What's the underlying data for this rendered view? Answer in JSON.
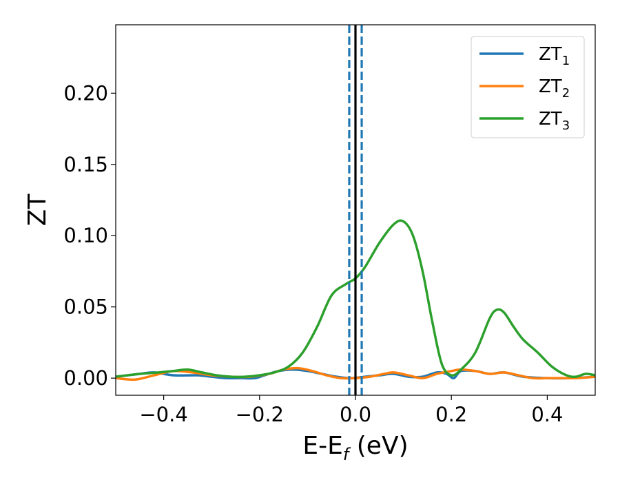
{
  "chart_data": {
    "type": "line",
    "xlabel": "E-E",
    "xlabel_sub": "f",
    "xlabel_unit": " (eV)",
    "ylabel": "ZT",
    "xlim": [
      -0.5,
      0.5
    ],
    "ylim": [
      -0.012,
      0.248
    ],
    "xticks": [
      -0.4,
      -0.2,
      0.0,
      0.2,
      0.4
    ],
    "xtick_labels": [
      "−0.4",
      "−0.2",
      "0.0",
      "0.2",
      "0.4"
    ],
    "yticks": [
      0.0,
      0.05,
      0.1,
      0.15,
      0.2
    ],
    "ytick_labels": [
      "0.00",
      "0.05",
      "0.10",
      "0.15",
      "0.20"
    ],
    "legend_position": "top-right",
    "grid": false,
    "vertical_lines": [
      {
        "x": 0.0,
        "color": "#000000",
        "style": "solid"
      },
      {
        "x": -0.013,
        "color": "#1f77b4",
        "style": "dashed"
      },
      {
        "x": 0.013,
        "color": "#1f77b4",
        "style": "dashed"
      }
    ],
    "series": [
      {
        "name": "ZT",
        "name_sub": "1",
        "color": "#1f77b4",
        "x": [
          -0.5,
          -0.45,
          -0.42,
          -0.38,
          -0.33,
          -0.3,
          -0.27,
          -0.24,
          -0.21,
          -0.19,
          -0.16,
          -0.13,
          -0.1,
          -0.07,
          -0.04,
          -0.01,
          0.02,
          0.05,
          0.08,
          0.11,
          0.14,
          0.17,
          0.19,
          0.205,
          0.22,
          0.25,
          0.28,
          0.31,
          0.35,
          0.4,
          0.45,
          0.5
        ],
        "values": [
          0.001,
          0.003,
          0.004,
          0.002,
          0.002,
          0.001,
          0.0,
          0.0,
          0.0,
          0.002,
          0.005,
          0.006,
          0.005,
          0.003,
          0.001,
          0.0,
          0.001,
          0.002,
          0.003,
          0.001,
          0.001,
          0.004,
          0.003,
          0.0,
          0.005,
          0.005,
          0.003,
          0.004,
          0.001,
          0.0,
          0.0,
          0.001
        ]
      },
      {
        "name": "ZT",
        "name_sub": "2",
        "color": "#ff7f0e",
        "x": [
          -0.5,
          -0.46,
          -0.42,
          -0.38,
          -0.34,
          -0.3,
          -0.26,
          -0.22,
          -0.18,
          -0.15,
          -0.12,
          -0.09,
          -0.06,
          -0.03,
          0.0,
          0.03,
          0.06,
          0.08,
          0.11,
          0.14,
          0.17,
          0.2,
          0.22,
          0.25,
          0.28,
          0.31,
          0.34,
          0.37,
          0.4,
          0.43,
          0.46,
          0.5
        ],
        "values": [
          0.0,
          -0.001,
          0.002,
          0.005,
          0.004,
          0.002,
          0.001,
          0.001,
          0.003,
          0.006,
          0.007,
          0.005,
          0.002,
          0.0,
          0.0,
          0.001,
          0.003,
          0.004,
          0.002,
          0.0,
          0.003,
          0.005,
          0.006,
          0.005,
          0.003,
          0.004,
          0.002,
          0.0,
          0.0,
          0.0,
          0.0,
          0.001
        ]
      },
      {
        "name": "ZT",
        "name_sub": "3",
        "color": "#2ca02c",
        "x": [
          -0.5,
          -0.45,
          -0.41,
          -0.38,
          -0.35,
          -0.32,
          -0.29,
          -0.26,
          -0.23,
          -0.2,
          -0.17,
          -0.14,
          -0.11,
          -0.08,
          -0.05,
          -0.02,
          0.0,
          0.02,
          0.05,
          0.08,
          0.1,
          0.12,
          0.14,
          0.16,
          0.18,
          0.2,
          0.22,
          0.25,
          0.28,
          0.295,
          0.31,
          0.33,
          0.35,
          0.38,
          0.41,
          0.44,
          0.46,
          0.48,
          0.5
        ],
        "values": [
          0.001,
          0.003,
          0.004,
          0.005,
          0.006,
          0.004,
          0.002,
          0.001,
          0.001,
          0.002,
          0.004,
          0.008,
          0.018,
          0.036,
          0.058,
          0.066,
          0.07,
          0.078,
          0.095,
          0.108,
          0.11,
          0.1,
          0.075,
          0.04,
          0.01,
          0.002,
          0.006,
          0.018,
          0.042,
          0.048,
          0.046,
          0.036,
          0.027,
          0.018,
          0.008,
          0.002,
          0.001,
          0.003,
          0.002
        ]
      }
    ]
  }
}
